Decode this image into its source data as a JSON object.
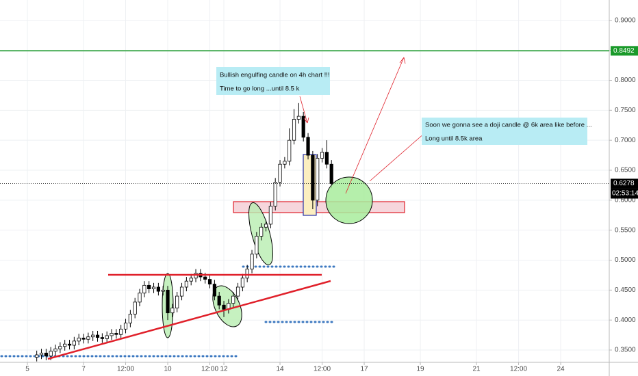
{
  "chart_data": {
    "type": "candlestick",
    "x": [
      5.333,
      5.5,
      5.667,
      5.833,
      6,
      6.167,
      6.333,
      6.5,
      6.667,
      6.833,
      7,
      7.167,
      7.333,
      7.5,
      7.667,
      7.833,
      8,
      8.167,
      8.333,
      8.5,
      8.667,
      8.833,
      9,
      9.167,
      9.333,
      9.5,
      9.667,
      9.833,
      10,
      10.167,
      10.333,
      10.5,
      10.667,
      10.833,
      11,
      11.167,
      11.333,
      11.5,
      11.667,
      11.833,
      12,
      12.167,
      12.333,
      12.5,
      12.667,
      12.833,
      13,
      13.167,
      13.333,
      13.5,
      13.667,
      13.833,
      14,
      14.167,
      14.333,
      14.5,
      14.667,
      14.833,
      15,
      15.167,
      15.333,
      15.5,
      15.667,
      15.833
    ],
    "ohlc": [
      [
        0.338,
        0.349,
        0.331,
        0.342
      ],
      [
        0.342,
        0.352,
        0.335,
        0.345
      ],
      [
        0.345,
        0.352,
        0.333,
        0.34
      ],
      [
        0.34,
        0.355,
        0.333,
        0.348
      ],
      [
        0.348,
        0.359,
        0.341,
        0.352
      ],
      [
        0.352,
        0.363,
        0.345,
        0.356
      ],
      [
        0.356,
        0.367,
        0.349,
        0.36
      ],
      [
        0.36,
        0.367,
        0.351,
        0.358
      ],
      [
        0.358,
        0.372,
        0.351,
        0.365
      ],
      [
        0.365,
        0.377,
        0.358,
        0.37
      ],
      [
        0.37,
        0.377,
        0.361,
        0.368
      ],
      [
        0.368,
        0.379,
        0.361,
        0.372
      ],
      [
        0.372,
        0.382,
        0.365,
        0.375
      ],
      [
        0.375,
        0.382,
        0.364,
        0.371
      ],
      [
        0.371,
        0.378,
        0.362,
        0.369
      ],
      [
        0.369,
        0.381,
        0.362,
        0.374
      ],
      [
        0.374,
        0.385,
        0.367,
        0.378
      ],
      [
        0.378,
        0.385,
        0.369,
        0.376
      ],
      [
        0.376,
        0.392,
        0.369,
        0.385
      ],
      [
        0.385,
        0.402,
        0.378,
        0.395
      ],
      [
        0.395,
        0.417,
        0.388,
        0.41
      ],
      [
        0.41,
        0.437,
        0.403,
        0.43
      ],
      [
        0.43,
        0.452,
        0.423,
        0.445
      ],
      [
        0.445,
        0.465,
        0.438,
        0.458
      ],
      [
        0.458,
        0.465,
        0.445,
        0.452
      ],
      [
        0.452,
        0.462,
        0.445,
        0.455
      ],
      [
        0.455,
        0.462,
        0.441,
        0.448
      ],
      [
        0.448,
        0.457,
        0.441,
        0.45
      ],
      [
        0.45,
        0.457,
        0.4,
        0.412
      ],
      [
        0.412,
        0.427,
        0.405,
        0.42
      ],
      [
        0.42,
        0.447,
        0.413,
        0.44
      ],
      [
        0.44,
        0.462,
        0.433,
        0.455
      ],
      [
        0.455,
        0.472,
        0.448,
        0.465
      ],
      [
        0.465,
        0.477,
        0.458,
        0.47
      ],
      [
        0.47,
        0.485,
        0.463,
        0.478
      ],
      [
        0.478,
        0.485,
        0.465,
        0.472
      ],
      [
        0.472,
        0.479,
        0.461,
        0.468
      ],
      [
        0.468,
        0.475,
        0.453,
        0.46
      ],
      [
        0.46,
        0.467,
        0.433,
        0.44
      ],
      [
        0.44,
        0.447,
        0.418,
        0.425
      ],
      [
        0.425,
        0.432,
        0.405,
        0.418
      ],
      [
        0.418,
        0.435,
        0.411,
        0.428
      ],
      [
        0.428,
        0.447,
        0.421,
        0.44
      ],
      [
        0.44,
        0.462,
        0.433,
        0.455
      ],
      [
        0.455,
        0.477,
        0.448,
        0.47
      ],
      [
        0.47,
        0.492,
        0.463,
        0.485
      ],
      [
        0.485,
        0.517,
        0.478,
        0.51
      ],
      [
        0.51,
        0.547,
        0.503,
        0.54
      ],
      [
        0.54,
        0.562,
        0.533,
        0.555
      ],
      [
        0.555,
        0.567,
        0.548,
        0.56
      ],
      [
        0.56,
        0.597,
        0.553,
        0.59
      ],
      [
        0.59,
        0.637,
        0.583,
        0.63
      ],
      [
        0.63,
        0.667,
        0.623,
        0.66
      ],
      [
        0.66,
        0.672,
        0.653,
        0.665
      ],
      [
        0.665,
        0.72,
        0.658,
        0.7
      ],
      [
        0.7,
        0.752,
        0.693,
        0.735
      ],
      [
        0.735,
        0.762,
        0.728,
        0.74
      ],
      [
        0.74,
        0.747,
        0.698,
        0.705
      ],
      [
        0.705,
        0.712,
        0.668,
        0.675
      ],
      [
        0.675,
        0.682,
        0.585,
        0.6
      ],
      [
        0.6,
        0.677,
        0.59,
        0.67
      ],
      [
        0.67,
        0.687,
        0.663,
        0.68
      ],
      [
        0.68,
        0.7,
        0.653,
        0.66
      ],
      [
        0.66,
        0.667,
        0.62,
        0.6278
      ]
    ],
    "up_color": "#ffffff",
    "down_color": "#000000",
    "xlim": [
      4.024,
      25.73
    ],
    "xticks": [
      {
        "value": 5,
        "label": "5"
      },
      {
        "value": 7,
        "label": "7"
      },
      {
        "value": 8.5,
        "label": "12:00"
      },
      {
        "value": 10,
        "label": "10"
      },
      {
        "value": 11.5,
        "label": "12:00"
      },
      {
        "value": 12,
        "label": "12"
      },
      {
        "value": 14,
        "label": "14"
      },
      {
        "value": 15.5,
        "label": "12:00"
      },
      {
        "value": 17,
        "label": "17"
      },
      {
        "value": 19,
        "label": "19"
      },
      {
        "value": 21,
        "label": "21"
      },
      {
        "value": 22.5,
        "label": "12:00"
      },
      {
        "value": 24,
        "label": "24"
      }
    ],
    "ylim": [
      0.3295,
      0.934
    ],
    "yticks": [
      {
        "value": 0.35,
        "label": "0.3500"
      },
      {
        "value": 0.4,
        "label": "0.4000"
      },
      {
        "value": 0.45,
        "label": "0.4500"
      },
      {
        "value": 0.5,
        "label": "0.5000"
      },
      {
        "value": 0.55,
        "label": "0.5500"
      },
      {
        "value": 0.6,
        "label": "0.6000"
      },
      {
        "value": 0.65,
        "label": "0.6500"
      },
      {
        "value": 0.7,
        "label": "0.7000"
      },
      {
        "value": 0.75,
        "label": "0.7500"
      },
      {
        "value": 0.8,
        "label": "0.8000"
      },
      {
        "value": 0.85,
        "label": "0.8500"
      },
      {
        "value": 0.9,
        "label": "0.9000"
      }
    ],
    "grid": true,
    "price_lines": [
      {
        "value": 0.8492,
        "color": "#1a9a2a"
      },
      {
        "value": 0.6278,
        "color": "#000000"
      }
    ],
    "countdown": "02:53:14",
    "annotations": [
      {
        "lines": [
          "Bullish engulfing candle on 4h chart !!!",
          "Time to go long ...until 8.5 k"
        ]
      },
      {
        "lines": [
          "Soon we gonna see a doji candle @ 6k area like before ...",
          "Long until 8.5k area"
        ]
      }
    ]
  }
}
